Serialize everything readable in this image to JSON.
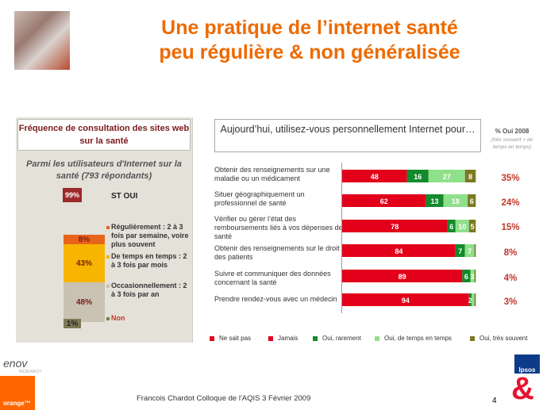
{
  "title": {
    "line1": "Une pratique de l’internet santé",
    "line2": "peu régulière & non généralisée"
  },
  "left_panel": {
    "heading": "Fréquence de consultation des sites web sur la santé",
    "subtitle": "Parmi les utilisateurs d'Internet sur la santé (793 répondants)",
    "st_oui_value": "99%",
    "st_oui_label": "ST OUI",
    "segments": [
      {
        "value": "8%",
        "label": "Régulièrement : 2 à 3 fois par semaine, voire plus souvent",
        "color": "#e8641b"
      },
      {
        "value": "43%",
        "label": "De temps en temps : 2 à 3 fois par mois",
        "color": "#f7b500"
      },
      {
        "value": "48%",
        "label": "Occasionnellement : 2 à 3 fois par an",
        "color": "#c9c2b2"
      },
      {
        "value": "1%",
        "label": "Non",
        "color": "#7d7a55"
      }
    ]
  },
  "question": "Aujourd’hui, utilisez-vous personnellement Internet pour…",
  "column_2008": {
    "header": "% Oui 2008",
    "note": "(très souvent + de temps en temps)"
  },
  "chart_data": {
    "type": "bar",
    "orientation": "horizontal-stacked",
    "xlim": [
      0,
      100
    ],
    "categories": [
      "Obtenir des renseignements sur une maladie ou un médicament",
      "Situer géographiquement un professionnel de santé",
      "Vérifier ou gérer l’état des remboursements liés à vos dépenses de santé",
      "Obtenir des renseignements sur le droit des patients",
      "Suivre et communiquer des données concernant la santé",
      "Prendre rendez-vous avec un médecin"
    ],
    "series": [
      {
        "name": "Ne sait pas",
        "color": "#e2001a",
        "values": [
          0,
          0,
          0,
          0,
          0,
          0
        ]
      },
      {
        "name": "Jamais",
        "color": "#e2001a",
        "values": [
          48,
          62,
          78,
          84,
          89,
          94
        ]
      },
      {
        "name": "Oui, rarement",
        "color": "#138a2c",
        "values": [
          16,
          13,
          6,
          7,
          6,
          2
        ]
      },
      {
        "name": "Oui, de temps en temps",
        "color": "#8fe08b",
        "values": [
          27,
          18,
          10,
          7,
          3,
          2
        ]
      },
      {
        "name": "Oui, très souvent",
        "color": "#7b7a22",
        "values": [
          8,
          6,
          5,
          1,
          1,
          1
        ]
      }
    ],
    "labels": [
      [
        "48",
        "16",
        "27",
        "8"
      ],
      [
        "62",
        "13",
        "18",
        "6"
      ],
      [
        "78",
        "6",
        "10",
        "5"
      ],
      [
        "84",
        "7",
        "7",
        ""
      ],
      [
        "89",
        "6",
        "3",
        ""
      ],
      [
        "94",
        "2",
        "",
        ""
      ]
    ],
    "oui_2008": [
      "35%",
      "24%",
      "15%",
      "8%",
      "4%",
      "3%"
    ]
  },
  "legend": [
    {
      "label": "Ne sait pas",
      "color": "#e2001a"
    },
    {
      "label": "Jamais",
      "color": "#e2001a"
    },
    {
      "label": "Oui, rarement",
      "color": "#138a2c"
    },
    {
      "label": "Oui, de temps en temps",
      "color": "#8fe08b"
    },
    {
      "label": "Oui, très souvent",
      "color": "#7b7a22"
    }
  ],
  "footer": "Francois Chardot Colloque de l'AQIS 3 Février 2009",
  "page_number": "4",
  "logos": {
    "enov": "enov",
    "enov_sub": "RESEARCH",
    "orange": "orange™",
    "ipsos": "Ipsos",
    "ampersand": "&"
  }
}
